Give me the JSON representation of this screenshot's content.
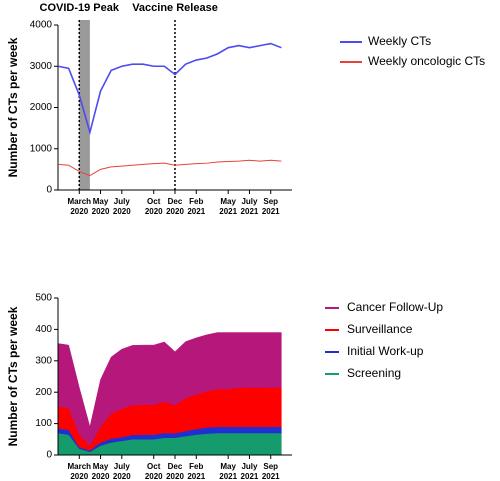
{
  "chart_data": [
    {
      "type": "line",
      "annotations": [
        "COVID-19 Peak",
        "Vaccine Release"
      ],
      "vlines": [
        "2020-03",
        "2020-12"
      ],
      "shaded_span": [
        "2020-03",
        "2020-04"
      ],
      "y_label": "Number of CTs per week",
      "x": [
        "2020-01",
        "2020-02",
        "2020-03",
        "2020-04",
        "2020-05",
        "2020-06",
        "2020-07",
        "2020-08",
        "2020-09",
        "2020-10",
        "2020-11",
        "2020-12",
        "2021-01",
        "2021-02",
        "2021-03",
        "2021-04",
        "2021-05",
        "2021-06",
        "2021-07",
        "2021-08",
        "2021-09",
        "2021-10"
      ],
      "xlim": [
        "2020-01",
        "2021-11"
      ],
      "xticks": [
        {
          "value": "2020-03",
          "label": [
            "March",
            "2020"
          ]
        },
        {
          "value": "2020-05",
          "label": [
            "May",
            "2020"
          ]
        },
        {
          "value": "2020-07",
          "label": [
            "July",
            "2020"
          ]
        },
        {
          "value": "2020-10",
          "label": [
            "Oct",
            "2020"
          ]
        },
        {
          "value": "2020-12",
          "label": [
            "Dec",
            "2020"
          ]
        },
        {
          "value": "2021-02",
          "label": [
            "Feb",
            "2021"
          ]
        },
        {
          "value": "2021-05",
          "label": [
            "May",
            "2021"
          ]
        },
        {
          "value": "2021-07",
          "label": [
            "July",
            "2021"
          ]
        },
        {
          "value": "2021-09",
          "label": [
            "Sep",
            "2021"
          ]
        }
      ],
      "ylim": [
        0,
        4000
      ],
      "yticks": [
        0,
        1000,
        2000,
        3000,
        4000
      ],
      "series": [
        {
          "name": "Weekly CTs",
          "color": "#4b4bef",
          "values": [
            3000,
            2950,
            2300,
            1400,
            2400,
            2900,
            3000,
            3050,
            3050,
            3000,
            3000,
            2800,
            3050,
            3150,
            3200,
            3300,
            3450,
            3500,
            3450,
            3500,
            3550,
            3450
          ]
        },
        {
          "name": "Weekly oncologic CTs",
          "color": "#e8413c",
          "values": [
            620,
            600,
            450,
            350,
            500,
            560,
            580,
            600,
            620,
            640,
            650,
            600,
            620,
            640,
            650,
            680,
            690,
            700,
            720,
            700,
            720,
            700
          ]
        }
      ]
    },
    {
      "type": "stacked_area",
      "y_label": "Number of CTs per week",
      "x": [
        "2020-01",
        "2020-02",
        "2020-03",
        "2020-04",
        "2020-05",
        "2020-06",
        "2020-07",
        "2020-08",
        "2020-09",
        "2020-10",
        "2020-11",
        "2020-12",
        "2021-01",
        "2021-02",
        "2021-03",
        "2021-04",
        "2021-05",
        "2021-06",
        "2021-07",
        "2021-08",
        "2021-09",
        "2021-10"
      ],
      "xlim": [
        "2020-01",
        "2021-11"
      ],
      "xticks": [
        {
          "value": "2020-03",
          "label": [
            "March",
            "2020"
          ]
        },
        {
          "value": "2020-05",
          "label": [
            "May",
            "2020"
          ]
        },
        {
          "value": "2020-07",
          "label": [
            "July",
            "2020"
          ]
        },
        {
          "value": "2020-10",
          "label": [
            "Oct",
            "2020"
          ]
        },
        {
          "value": "2020-12",
          "label": [
            "Dec",
            "2020"
          ]
        },
        {
          "value": "2021-02",
          "label": [
            "Feb",
            "2021"
          ]
        },
        {
          "value": "2021-05",
          "label": [
            "May",
            "2021"
          ]
        },
        {
          "value": "2021-07",
          "label": [
            "July",
            "2021"
          ]
        },
        {
          "value": "2021-09",
          "label": [
            "Sep",
            "2021"
          ]
        }
      ],
      "ylim": [
        0,
        500
      ],
      "yticks": [
        0,
        100,
        200,
        300,
        400,
        500
      ],
      "series": [
        {
          "name": "Screening",
          "color": "#169b6c",
          "values": [
            70,
            65,
            20,
            10,
            30,
            40,
            45,
            50,
            50,
            50,
            55,
            55,
            60,
            65,
            68,
            70,
            70,
            70,
            70,
            70,
            70,
            70
          ]
        },
        {
          "name": "Initial Work-up",
          "color": "#1f2fd0",
          "values": [
            15,
            15,
            5,
            5,
            10,
            12,
            12,
            14,
            15,
            15,
            15,
            14,
            16,
            18,
            20,
            20,
            20,
            20,
            20,
            20,
            20,
            20
          ]
        },
        {
          "name": "Surveillance",
          "color": "#ff0000",
          "values": [
            70,
            70,
            40,
            15,
            50,
            80,
            90,
            95,
            95,
            95,
            100,
            90,
            105,
            110,
            115,
            120,
            120,
            125,
            125,
            125,
            125,
            125
          ]
        },
        {
          "name": "Cancer Follow-Up",
          "color": "#b5177a",
          "values": [
            200,
            200,
            150,
            60,
            150,
            180,
            190,
            190,
            190,
            190,
            190,
            170,
            180,
            180,
            180,
            180,
            180,
            175,
            175,
            175,
            175,
            175
          ]
        }
      ]
    }
  ]
}
